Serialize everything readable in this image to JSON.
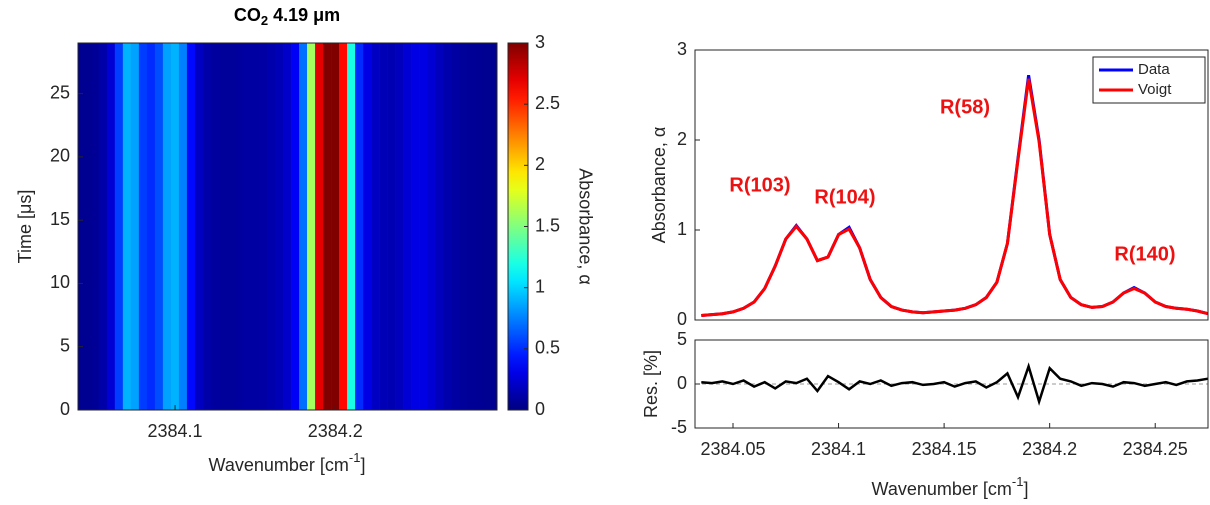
{
  "chart_data": [
    {
      "type": "heatmap",
      "title": {
        "main": "CO",
        "subscript": "2",
        "rest": " 4.19 μm"
      },
      "xlabel": {
        "text": "Wavenumber [cm",
        "superscript": "-1",
        "end": "]"
      },
      "ylabel": "Time [μs]",
      "colorbar_label": "Absorbance, α",
      "colormap": "jet",
      "xlim": [
        2384.0394,
        2384.301
      ],
      "ylim": [
        0,
        29
      ],
      "xticks": [
        2384.1,
        2384.2
      ],
      "yticks": [
        0,
        5,
        10,
        15,
        20,
        25
      ],
      "clim": [
        0,
        3
      ],
      "cticks": [
        0,
        0.5,
        1,
        1.5,
        2,
        2.5,
        3
      ],
      "x": [
        2384.04,
        2384.045,
        2384.05,
        2384.055,
        2384.06,
        2384.065,
        2384.07,
        2384.075,
        2384.08,
        2384.085,
        2384.09,
        2384.095,
        2384.1,
        2384.105,
        2384.11,
        2384.115,
        2384.12,
        2384.125,
        2384.13,
        2384.135,
        2384.14,
        2384.145,
        2384.15,
        2384.155,
        2384.16,
        2384.165,
        2384.17,
        2384.175,
        2384.18,
        2384.185,
        2384.19,
        2384.195,
        2384.2,
        2384.205,
        2384.21,
        2384.215,
        2384.22,
        2384.225,
        2384.23,
        2384.235,
        2384.24,
        2384.245,
        2384.25,
        2384.255,
        2384.26,
        2384.265,
        2384.27,
        2384.275,
        2384.28,
        2384.285,
        2384.29,
        2384.295,
        2384.3
      ],
      "values": [
        0.05,
        0.05,
        0.07,
        0.12,
        0.25,
        0.55,
        0.9,
        0.85,
        0.55,
        0.5,
        0.6,
        0.85,
        0.9,
        0.75,
        0.4,
        0.2,
        0.12,
        0.09,
        0.08,
        0.08,
        0.09,
        0.1,
        0.1,
        0.11,
        0.13,
        0.16,
        0.22,
        0.35,
        0.7,
        1.6,
        2.7,
        3,
        3,
        2.6,
        1.2,
        0.5,
        0.3,
        0.2,
        0.16,
        0.15,
        0.18,
        0.25,
        0.3,
        0.3,
        0.25,
        0.18,
        0.13,
        0.1,
        0.08,
        0.07,
        0.06,
        0.05,
        0.05
      ]
    },
    {
      "type": "line",
      "ylabel": "Absorbance, α",
      "xlim": [
        2384.032,
        2384.275
      ],
      "ylim": [
        0,
        3
      ],
      "yticks": [
        0,
        1,
        2,
        3
      ],
      "legend": "upper right",
      "annotations": [
        "R(103)",
        "R(104)",
        "R(58)",
        "R(140)"
      ],
      "x": [
        2384.035,
        2384.04,
        2384.045,
        2384.05,
        2384.055,
        2384.06,
        2384.065,
        2384.07,
        2384.075,
        2384.08,
        2384.085,
        2384.09,
        2384.095,
        2384.1,
        2384.105,
        2384.11,
        2384.115,
        2384.12,
        2384.125,
        2384.13,
        2384.135,
        2384.14,
        2384.145,
        2384.15,
        2384.155,
        2384.16,
        2384.165,
        2384.17,
        2384.175,
        2384.18,
        2384.185,
        2384.19,
        2384.195,
        2384.2,
        2384.205,
        2384.21,
        2384.215,
        2384.22,
        2384.225,
        2384.23,
        2384.235,
        2384.24,
        2384.245,
        2384.25,
        2384.255,
        2384.26,
        2384.265,
        2384.27,
        2384.275
      ],
      "series": [
        {
          "name": "Data",
          "color": "#0000ff",
          "values": [
            0.05,
            0.06,
            0.07,
            0.09,
            0.13,
            0.2,
            0.35,
            0.6,
            0.9,
            1.05,
            0.9,
            0.66,
            0.7,
            0.95,
            1.03,
            0.8,
            0.45,
            0.25,
            0.15,
            0.11,
            0.09,
            0.08,
            0.09,
            0.1,
            0.11,
            0.13,
            0.17,
            0.25,
            0.42,
            0.85,
            1.8,
            2.72,
            2.0,
            0.95,
            0.45,
            0.25,
            0.17,
            0.14,
            0.15,
            0.2,
            0.3,
            0.36,
            0.3,
            0.2,
            0.15,
            0.13,
            0.12,
            0.1,
            0.07
          ]
        },
        {
          "name": "Voigt",
          "color": "#ff0000",
          "values": [
            0.05,
            0.06,
            0.07,
            0.09,
            0.13,
            0.2,
            0.35,
            0.6,
            0.9,
            1.04,
            0.9,
            0.66,
            0.7,
            0.95,
            1.01,
            0.8,
            0.45,
            0.25,
            0.15,
            0.11,
            0.09,
            0.08,
            0.09,
            0.1,
            0.11,
            0.13,
            0.17,
            0.25,
            0.42,
            0.85,
            1.78,
            2.68,
            1.98,
            0.95,
            0.45,
            0.25,
            0.17,
            0.14,
            0.15,
            0.2,
            0.3,
            0.35,
            0.3,
            0.2,
            0.15,
            0.13,
            0.12,
            0.1,
            0.07
          ]
        }
      ]
    },
    {
      "type": "line",
      "ylabel": "Res. [%]",
      "xlabel": {
        "text": "Wavenumber [cm",
        "superscript": "-1",
        "end": "]"
      },
      "xlim": [
        2384.032,
        2384.275
      ],
      "ylim": [
        -5,
        5
      ],
      "yticks": [
        -5,
        0,
        5
      ],
      "xticks": [
        2384.05,
        2384.1,
        2384.15,
        2384.2,
        2384.25
      ],
      "x": [
        2384.035,
        2384.04,
        2384.045,
        2384.05,
        2384.055,
        2384.06,
        2384.065,
        2384.07,
        2384.075,
        2384.08,
        2384.085,
        2384.09,
        2384.095,
        2384.1,
        2384.105,
        2384.11,
        2384.115,
        2384.12,
        2384.125,
        2384.13,
        2384.135,
        2384.14,
        2384.145,
        2384.15,
        2384.155,
        2384.16,
        2384.165,
        2384.17,
        2384.175,
        2384.18,
        2384.185,
        2384.19,
        2384.195,
        2384.2,
        2384.205,
        2384.21,
        2384.215,
        2384.22,
        2384.225,
        2384.23,
        2384.235,
        2384.24,
        2384.245,
        2384.25,
        2384.255,
        2384.26,
        2384.265,
        2384.27,
        2384.275
      ],
      "series": [
        {
          "color": "#000000",
          "values": [
            0.2,
            0.1,
            0.3,
            0.0,
            0.4,
            -0.3,
            0.2,
            -0.5,
            0.3,
            0.1,
            0.6,
            -0.8,
            0.9,
            0.2,
            -0.6,
            0.3,
            0.0,
            0.4,
            -0.2,
            0.1,
            0.2,
            -0.1,
            0.0,
            0.2,
            -0.3,
            0.1,
            0.3,
            -0.4,
            0.2,
            1.2,
            -1.5,
            2.0,
            -2.0,
            1.8,
            0.6,
            0.3,
            -0.2,
            0.1,
            0.0,
            -0.3,
            0.2,
            0.1,
            -0.2,
            0.0,
            0.2,
            -0.1,
            0.3,
            0.4,
            0.6
          ]
        }
      ]
    }
  ]
}
